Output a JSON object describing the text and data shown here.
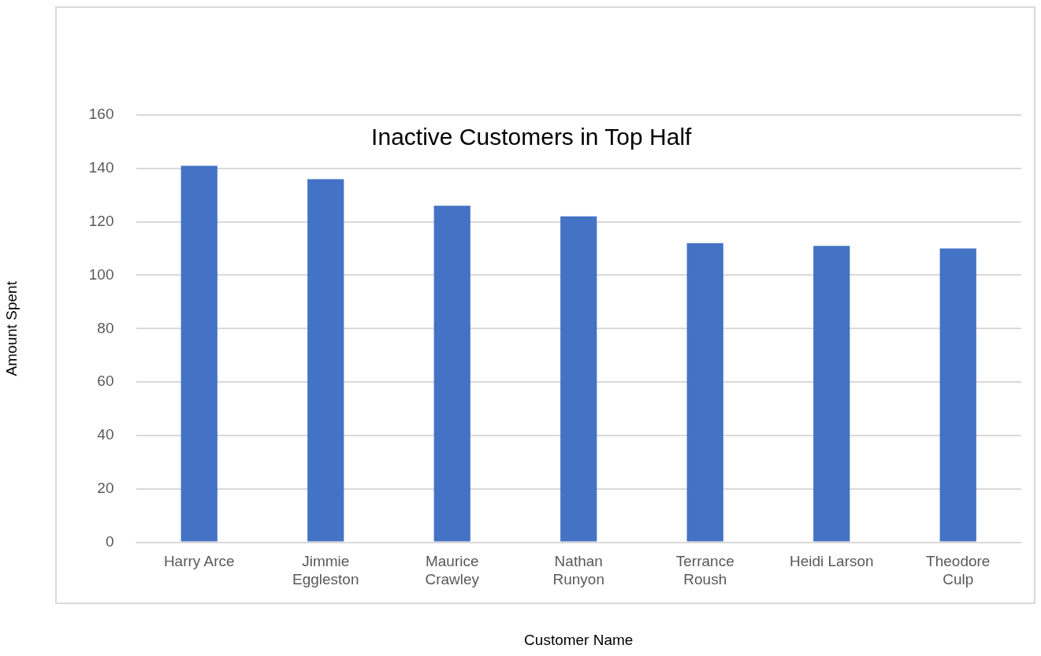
{
  "chart_data": {
    "type": "bar",
    "title": "Inactive Customers in Top Half",
    "xlabel": "Customer Name",
    "ylabel": "Amount Spent",
    "categories": [
      "Harry Arce",
      "Jimmie Eggleston",
      "Maurice Crawley",
      "Nathan Runyon",
      "Terrance Roush",
      "Heidi Larson",
      "Theodore Culp"
    ],
    "values": [
      141,
      136,
      126,
      122,
      112,
      111,
      110
    ],
    "color": "#4472c4",
    "ylim": [
      0,
      160
    ],
    "yticks": [
      0,
      20,
      40,
      60,
      80,
      100,
      120,
      140,
      160
    ],
    "grid": "y"
  }
}
